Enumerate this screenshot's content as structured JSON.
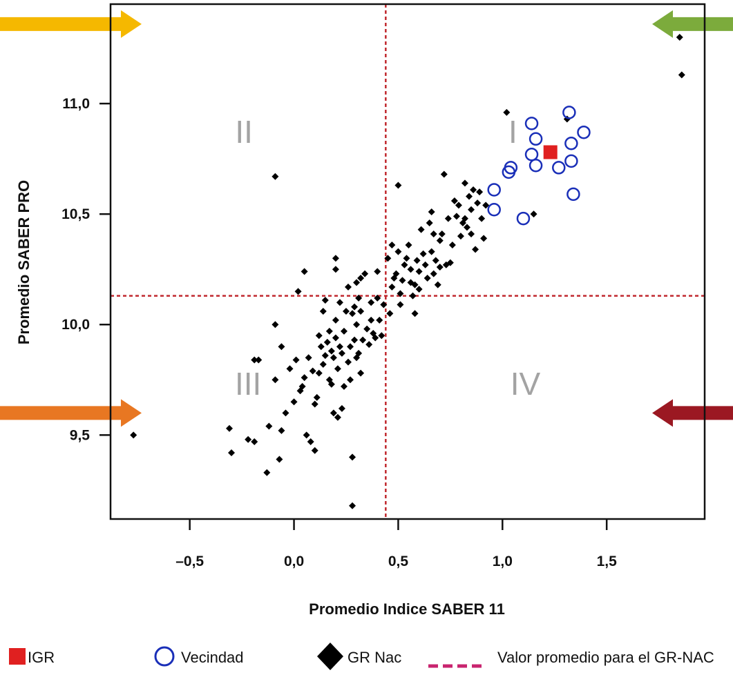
{
  "chart_data": {
    "type": "scatter",
    "xlabel": "Promedio Indice SABER 11",
    "ylabel": "Promedio SABER PRO",
    "xlim": [
      -0.88,
      1.97
    ],
    "ylim": [
      9.12,
      11.45
    ],
    "x_ticks": [
      -0.5,
      0.0,
      0.5,
      1.0,
      1.5
    ],
    "x_tick_labels": [
      "–0,5",
      "0,0",
      "0,5",
      "1,0",
      "1,5"
    ],
    "y_ticks": [
      9.5,
      10.0,
      10.5,
      11.0
    ],
    "y_tick_labels": [
      "9,5",
      "10,0",
      "10,5",
      "11,0"
    ],
    "grid": false,
    "reference_lines": {
      "x": 0.44,
      "y": 10.13
    },
    "quadrant_labels": [
      {
        "text": "I",
        "x": 1.05,
        "y": 10.86
      },
      {
        "text": "II",
        "x": -0.24,
        "y": 10.86
      },
      {
        "text": "III",
        "x": -0.22,
        "y": 9.72
      },
      {
        "text": "IV",
        "x": 1.11,
        "y": 9.72
      }
    ],
    "arrows": [
      {
        "color": "#f5b800",
        "direction": "right",
        "side": "left",
        "y": 11.36
      },
      {
        "color": "#7cab3c",
        "direction": "left",
        "side": "right",
        "y": 11.36
      },
      {
        "color": "#e87722",
        "direction": "right",
        "side": "left",
        "y": 9.6
      },
      {
        "color": "#9b1822",
        "direction": "left",
        "side": "right",
        "y": 9.6
      }
    ],
    "legend": {
      "placement": "bottom",
      "items": [
        {
          "label": "IGR",
          "marker": "square",
          "color": "#e02020"
        },
        {
          "label": "Vecindad",
          "marker": "circle",
          "color": "#1a2fb8"
        },
        {
          "label": "GR Nac",
          "marker": "diamond",
          "color": "#000000"
        },
        {
          "label": "Valor promedio para el GR-NAC",
          "marker": "dashed-line",
          "color": "#c8246f"
        }
      ]
    },
    "series": [
      {
        "name": "GR Nac",
        "marker": "diamond",
        "color": "#000000",
        "points": [
          [
            -0.77,
            9.5
          ],
          [
            -0.31,
            9.53
          ],
          [
            -0.3,
            9.42
          ],
          [
            -0.22,
            9.48
          ],
          [
            -0.19,
            9.47
          ],
          [
            -0.19,
            9.84
          ],
          [
            -0.17,
            9.84
          ],
          [
            -0.13,
            9.33
          ],
          [
            -0.12,
            9.54
          ],
          [
            -0.09,
            9.75
          ],
          [
            -0.07,
            9.39
          ],
          [
            -0.06,
            9.52
          ],
          [
            -0.06,
            9.9
          ],
          [
            -0.04,
            9.6
          ],
          [
            -0.09,
            10.0
          ],
          [
            -0.09,
            10.67
          ],
          [
            -0.02,
            9.8
          ],
          [
            0.0,
            9.65
          ],
          [
            0.01,
            9.84
          ],
          [
            0.02,
            10.15
          ],
          [
            0.03,
            9.7
          ],
          [
            0.04,
            9.72
          ],
          [
            0.05,
            9.76
          ],
          [
            0.05,
            10.24
          ],
          [
            0.06,
            9.5
          ],
          [
            0.07,
            9.85
          ],
          [
            0.08,
            9.47
          ],
          [
            0.09,
            9.79
          ],
          [
            0.1,
            9.64
          ],
          [
            0.1,
            9.43
          ],
          [
            0.11,
            9.67
          ],
          [
            0.12,
            9.78
          ],
          [
            0.12,
            9.95
          ],
          [
            0.13,
            9.9
          ],
          [
            0.14,
            9.82
          ],
          [
            0.14,
            10.06
          ],
          [
            0.15,
            9.86
          ],
          [
            0.15,
            10.11
          ],
          [
            0.16,
            9.92
          ],
          [
            0.17,
            9.75
          ],
          [
            0.17,
            9.97
          ],
          [
            0.18,
            9.88
          ],
          [
            0.18,
            9.73
          ],
          [
            0.19,
            9.6
          ],
          [
            0.19,
            9.85
          ],
          [
            0.2,
            10.02
          ],
          [
            0.2,
            9.94
          ],
          [
            0.2,
            10.25
          ],
          [
            0.2,
            10.3
          ],
          [
            0.21,
            9.58
          ],
          [
            0.21,
            9.8
          ],
          [
            0.22,
            10.1
          ],
          [
            0.22,
            9.9
          ],
          [
            0.23,
            9.62
          ],
          [
            0.23,
            9.87
          ],
          [
            0.24,
            9.72
          ],
          [
            0.24,
            9.97
          ],
          [
            0.25,
            10.06
          ],
          [
            0.26,
            9.83
          ],
          [
            0.26,
            10.17
          ],
          [
            0.27,
            9.9
          ],
          [
            0.27,
            9.75
          ],
          [
            0.28,
            9.4
          ],
          [
            0.28,
            9.18
          ],
          [
            0.28,
            10.05
          ],
          [
            0.29,
            10.08
          ],
          [
            0.29,
            9.93
          ],
          [
            0.3,
            9.85
          ],
          [
            0.3,
            10.19
          ],
          [
            0.3,
            10.0
          ],
          [
            0.31,
            9.87
          ],
          [
            0.31,
            10.12
          ],
          [
            0.32,
            9.78
          ],
          [
            0.32,
            10.06
          ],
          [
            0.32,
            10.21
          ],
          [
            0.33,
            9.93
          ],
          [
            0.34,
            10.23
          ],
          [
            0.35,
            9.98
          ],
          [
            0.36,
            9.91
          ],
          [
            0.37,
            10.1
          ],
          [
            0.37,
            10.02
          ],
          [
            0.38,
            9.96
          ],
          [
            0.39,
            9.94
          ],
          [
            0.4,
            10.24
          ],
          [
            0.4,
            10.12
          ],
          [
            0.41,
            10.02
          ],
          [
            0.42,
            9.95
          ],
          [
            0.43,
            10.09
          ],
          [
            0.45,
            10.3
          ],
          [
            0.46,
            10.05
          ],
          [
            0.47,
            10.17
          ],
          [
            0.47,
            10.36
          ],
          [
            0.48,
            10.21
          ],
          [
            0.49,
            10.23
          ],
          [
            0.5,
            10.33
          ],
          [
            0.5,
            10.63
          ],
          [
            0.51,
            10.09
          ],
          [
            0.51,
            10.14
          ],
          [
            0.52,
            10.2
          ],
          [
            0.53,
            10.27
          ],
          [
            0.54,
            10.3
          ],
          [
            0.55,
            10.36
          ],
          [
            0.56,
            10.19
          ],
          [
            0.56,
            10.25
          ],
          [
            0.57,
            10.13
          ],
          [
            0.58,
            10.18
          ],
          [
            0.58,
            10.05
          ],
          [
            0.59,
            10.29
          ],
          [
            0.6,
            10.24
          ],
          [
            0.6,
            10.16
          ],
          [
            0.61,
            10.43
          ],
          [
            0.62,
            10.32
          ],
          [
            0.63,
            10.27
          ],
          [
            0.64,
            10.21
          ],
          [
            0.65,
            10.46
          ],
          [
            0.66,
            10.51
          ],
          [
            0.66,
            10.33
          ],
          [
            0.67,
            10.41
          ],
          [
            0.67,
            10.23
          ],
          [
            0.68,
            10.29
          ],
          [
            0.69,
            10.18
          ],
          [
            0.7,
            10.26
          ],
          [
            0.7,
            10.38
          ],
          [
            0.71,
            10.41
          ],
          [
            0.72,
            10.68
          ],
          [
            0.73,
            10.27
          ],
          [
            0.74,
            10.48
          ],
          [
            0.75,
            10.28
          ],
          [
            0.76,
            10.36
          ],
          [
            0.77,
            10.56
          ],
          [
            0.78,
            10.49
          ],
          [
            0.79,
            10.54
          ],
          [
            0.8,
            10.4
          ],
          [
            0.81,
            10.46
          ],
          [
            0.82,
            10.64
          ],
          [
            0.82,
            10.48
          ],
          [
            0.83,
            10.44
          ],
          [
            0.84,
            10.58
          ],
          [
            0.85,
            10.52
          ],
          [
            0.85,
            10.41
          ],
          [
            0.86,
            10.61
          ],
          [
            0.87,
            10.34
          ],
          [
            0.88,
            10.55
          ],
          [
            0.89,
            10.6
          ],
          [
            0.9,
            10.48
          ],
          [
            0.91,
            10.39
          ],
          [
            0.92,
            10.54
          ],
          [
            1.02,
            10.96
          ],
          [
            1.15,
            10.5
          ],
          [
            1.31,
            10.93
          ],
          [
            1.85,
            11.3
          ],
          [
            1.86,
            11.13
          ]
        ]
      },
      {
        "name": "Vecindad",
        "marker": "circle",
        "color": "#1a2fb8",
        "points": [
          [
            0.96,
            10.61
          ],
          [
            0.96,
            10.52
          ],
          [
            1.03,
            10.69
          ],
          [
            1.04,
            10.71
          ],
          [
            1.1,
            10.48
          ],
          [
            1.14,
            10.77
          ],
          [
            1.14,
            10.91
          ],
          [
            1.16,
            10.84
          ],
          [
            1.16,
            10.72
          ],
          [
            1.27,
            10.71
          ],
          [
            1.32,
            10.96
          ],
          [
            1.33,
            10.82
          ],
          [
            1.33,
            10.74
          ],
          [
            1.34,
            10.59
          ],
          [
            1.39,
            10.87
          ]
        ]
      },
      {
        "name": "IGR",
        "marker": "square",
        "color": "#e02020",
        "points": [
          [
            1.23,
            10.78
          ]
        ]
      }
    ]
  }
}
